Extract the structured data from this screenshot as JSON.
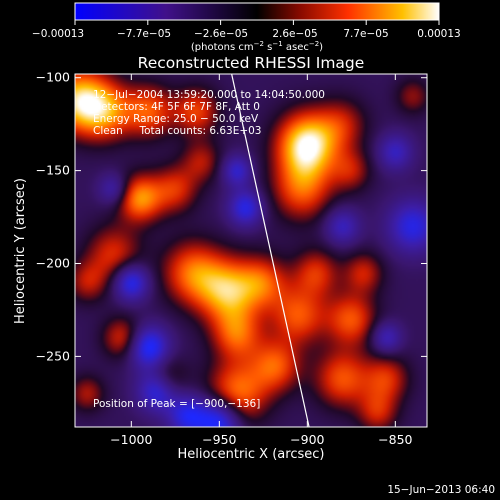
{
  "chart_data": {
    "type": "heatmap",
    "title": "Reconstructed RHESSI Image",
    "xlabel": "Heliocentric X (arcsec)",
    "ylabel": "Heliocentric Y (arcsec)",
    "xlim": [
      -1032,
      -832
    ],
    "ylim": [
      -288,
      -98
    ],
    "xticks": [
      {
        "value": -1000,
        "label": "−1000"
      },
      {
        "value": -950,
        "label": "−950"
      },
      {
        "value": -900,
        "label": "−900"
      },
      {
        "value": -850,
        "label": "−850"
      }
    ],
    "yticks": [
      {
        "value": -100,
        "label": "−100"
      },
      {
        "value": -150,
        "label": "−150"
      },
      {
        "value": -200,
        "label": "−200"
      },
      {
        "value": -250,
        "label": "−250"
      }
    ],
    "colorbar": {
      "min": -0.00013,
      "max": 0.00013,
      "tick_labels": [
        "−0.00013",
        "−7.7e−05",
        "−2.6e−05",
        "2.6e−05",
        "7.7e−05",
        "0.00013"
      ],
      "unit_main": "(photons cm",
      "unit_exp1": "−2",
      "unit_mid": " s",
      "unit_exp2": "−1",
      "unit_tail": " asec",
      "unit_exp3": "−2",
      "unit_close": ")"
    },
    "annotations": [
      "12−Jul−2004 13:59:20.000 to 14:04:50.000",
      "Detectors: 4F 5F 6F 7F 8F, Att 0",
      "Energy Range: 25.0 − 50.0 keV",
      "Clean     Total counts: 6.63E+03"
    ],
    "peak_label": "Position of Peak = [−900,−136]",
    "peak": {
      "x": -900,
      "y": -136
    },
    "limb_line": [
      {
        "x": -943,
        "y": -98
      },
      {
        "x": -899,
        "y": -288
      }
    ],
    "hotspots": [
      {
        "x": -900,
        "y": -136,
        "r": 12,
        "v": 1.0
      },
      {
        "x": -903,
        "y": -160,
        "r": 12,
        "v": 0.55
      },
      {
        "x": -1030,
        "y": -112,
        "r": 12,
        "v": 0.8
      },
      {
        "x": -1015,
        "y": -118,
        "r": 11,
        "v": 0.6
      },
      {
        "x": -990,
        "y": -118,
        "r": 10,
        "v": 0.55
      },
      {
        "x": -995,
        "y": -165,
        "r": 9,
        "v": 0.7
      },
      {
        "x": -975,
        "y": -160,
        "r": 9,
        "v": 0.45
      },
      {
        "x": -963,
        "y": -118,
        "r": 9,
        "v": 0.5
      },
      {
        "x": -960,
        "y": -145,
        "r": 8,
        "v": 0.35
      },
      {
        "x": -880,
        "y": -125,
        "r": 10,
        "v": 0.35
      },
      {
        "x": -1010,
        "y": -195,
        "r": 11,
        "v": 0.45
      },
      {
        "x": -965,
        "y": -205,
        "r": 12,
        "v": 0.6
      },
      {
        "x": -945,
        "y": -215,
        "r": 12,
        "v": 0.75
      },
      {
        "x": -925,
        "y": -210,
        "r": 10,
        "v": 0.5
      },
      {
        "x": -940,
        "y": -238,
        "r": 10,
        "v": 0.55
      },
      {
        "x": -940,
        "y": -270,
        "r": 12,
        "v": 0.65
      },
      {
        "x": -918,
        "y": -255,
        "r": 10,
        "v": 0.55
      },
      {
        "x": -905,
        "y": -228,
        "r": 11,
        "v": 0.55
      },
      {
        "x": -895,
        "y": -205,
        "r": 9,
        "v": 0.45
      },
      {
        "x": -875,
        "y": -230,
        "r": 10,
        "v": 0.55
      },
      {
        "x": -868,
        "y": -205,
        "r": 8,
        "v": 0.4
      },
      {
        "x": -880,
        "y": -262,
        "r": 11,
        "v": 0.55
      },
      {
        "x": -855,
        "y": -262,
        "r": 9,
        "v": 0.45
      },
      {
        "x": -860,
        "y": -280,
        "r": 8,
        "v": 0.4
      },
      {
        "x": -1005,
        "y": -240,
        "r": 8,
        "v": 0.45
      },
      {
        "x": -1025,
        "y": -270,
        "r": 7,
        "v": 0.35
      },
      {
        "x": -980,
        "y": -262,
        "r": 8,
        "v": 0.4
      },
      {
        "x": -875,
        "y": -150,
        "r": 8,
        "v": 0.35
      },
      {
        "x": -840,
        "y": -110,
        "r": 7,
        "v": 0.3
      },
      {
        "x": -1025,
        "y": -210,
        "r": 8,
        "v": 0.35
      },
      {
        "x": -1000,
        "y": -210,
        "r": 7,
        "v": -0.7
      },
      {
        "x": -990,
        "y": -245,
        "r": 8,
        "v": -0.75
      },
      {
        "x": -985,
        "y": -268,
        "r": 8,
        "v": -0.7
      },
      {
        "x": -950,
        "y": -285,
        "r": 9,
        "v": -0.8
      },
      {
        "x": -968,
        "y": -282,
        "r": 8,
        "v": -0.6
      },
      {
        "x": -935,
        "y": -170,
        "r": 7,
        "v": -0.6
      },
      {
        "x": -940,
        "y": -150,
        "r": 6,
        "v": -0.5
      },
      {
        "x": -840,
        "y": -180,
        "r": 10,
        "v": -0.6
      },
      {
        "x": -850,
        "y": -140,
        "r": 7,
        "v": -0.45
      },
      {
        "x": -880,
        "y": -180,
        "r": 7,
        "v": -0.45
      },
      {
        "x": -1010,
        "y": -160,
        "r": 6,
        "v": -0.4
      },
      {
        "x": -855,
        "y": -240,
        "r": 6,
        "v": -0.45
      }
    ]
  },
  "footer": {
    "timestamp": "15−Jun−2013 06:40"
  },
  "colors": {
    "background": "#000000",
    "foreground": "#ffffff",
    "colormap_stops": [
      "#2030ff",
      "#2a1a8c",
      "#1a0a3c",
      "#000000",
      "#5a0c10",
      "#c81e00",
      "#ff5a00",
      "#ffc000",
      "#ffffff"
    ]
  }
}
